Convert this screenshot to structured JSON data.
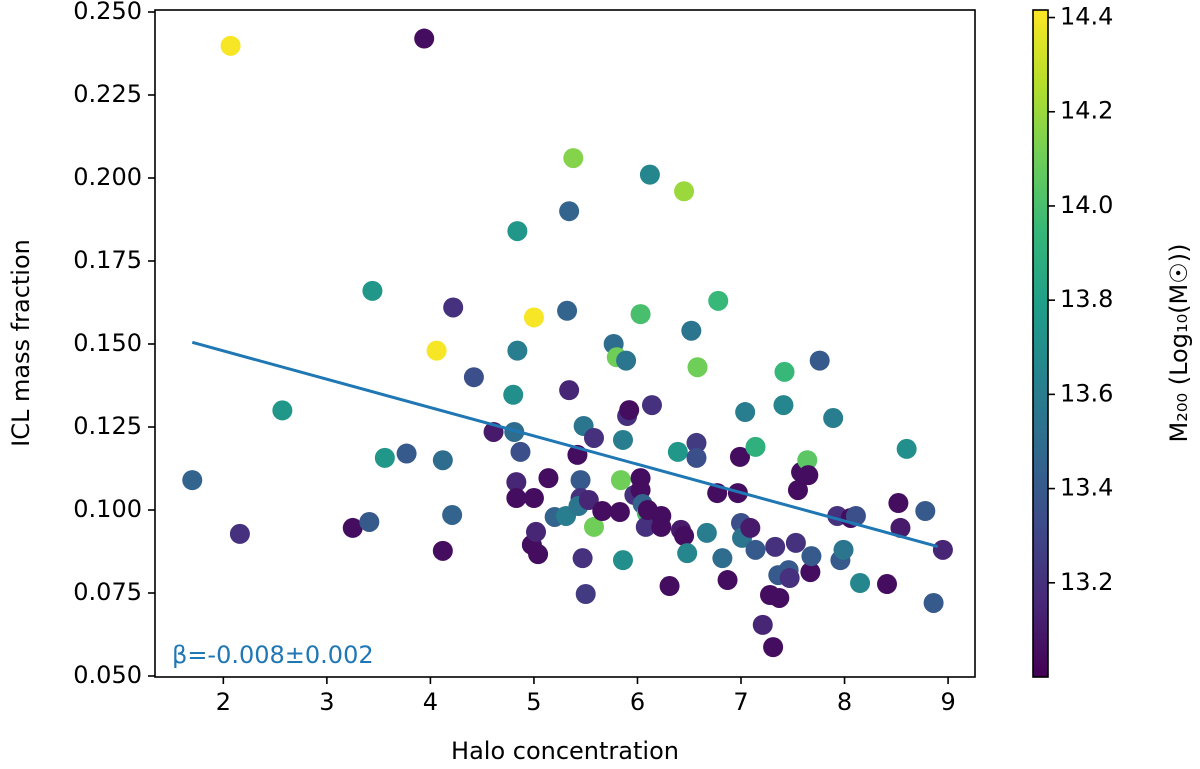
{
  "chart_data": {
    "type": "scatter",
    "xlabel": "Halo concentration",
    "ylabel": "ICL mass fraction",
    "colorbar_label": "M₂₀₀ (Log₁₀(M☉))",
    "annotation": "β=-0.008±0.002",
    "xlim": [
      1.34,
      9.26
    ],
    "ylim": [
      0.0497,
      0.2506
    ],
    "xticks": [
      2,
      3,
      4,
      5,
      6,
      7,
      8,
      9
    ],
    "yticks": [
      {
        "value": 0.05,
        "label": "0.050"
      },
      {
        "value": 0.075,
        "label": "0.075"
      },
      {
        "value": 0.1,
        "label": "0.100"
      },
      {
        "value": 0.125,
        "label": "0.125"
      },
      {
        "value": 0.15,
        "label": "0.150"
      },
      {
        "value": 0.175,
        "label": "0.175"
      },
      {
        "value": 0.2,
        "label": "0.200"
      },
      {
        "value": 0.225,
        "label": "0.225"
      },
      {
        "value": 0.25,
        "label": "0.250"
      }
    ],
    "clim": [
      13.0,
      14.416
    ],
    "cticks": [
      13.2,
      13.4,
      13.6,
      13.8,
      {
        "value": 14.0,
        "label": "14.0"
      },
      14.2,
      14.4
    ],
    "colormap": [
      "#440154",
      "#482878",
      "#3e4989",
      "#31688e",
      "#26828e",
      "#1f9e89",
      "#35b779",
      "#6ece58",
      "#b5de2b",
      "#fde725"
    ],
    "x": [
      2.07,
      3.94,
      5.38,
      6.12,
      6.45,
      5.34,
      4.84,
      3.44,
      4.22,
      5.0,
      5.32,
      6.03,
      6.78,
      4.06,
      4.84,
      5.77,
      5.8,
      5.89,
      6.52,
      6.58,
      7.42,
      7.76,
      4.42,
      2.57,
      1.7,
      2.16,
      3.25,
      3.41,
      3.56,
      3.77,
      4.12,
      4.21,
      4.12,
      4.61,
      4.8,
      4.81,
      4.87,
      4.83,
      4.83,
      5.0,
      4.98,
      5.04,
      5.02,
      5.14,
      5.2,
      5.31,
      5.34,
      5.42,
      5.48,
      5.45,
      5.45,
      5.43,
      5.47,
      5.5,
      5.58,
      5.53,
      5.58,
      5.66,
      5.83,
      5.84,
      5.86,
      5.9,
      5.92,
      5.86,
      5.97,
      6.03,
      6.03,
      6.05,
      6.09,
      6.08,
      6.14,
      6.1,
      6.23,
      6.23,
      6.31,
      6.39,
      6.42,
      6.45,
      6.48,
      6.57,
      6.57,
      6.67,
      6.77,
      6.82,
      6.87,
      6.97,
      6.99,
      7.0,
      7.01,
      7.04,
      7.09,
      7.14,
      7.14,
      7.21,
      7.28,
      7.31,
      7.33,
      7.36,
      7.37,
      7.41,
      7.46,
      7.47,
      7.53,
      7.55,
      7.58,
      7.64,
      7.65,
      7.67,
      7.68,
      7.89,
      7.93,
      7.96,
      7.99,
      8.06,
      8.11,
      8.15,
      8.6,
      8.41,
      8.52,
      8.54,
      8.78,
      8.86,
      8.95
    ],
    "values": [
      0.2398,
      0.242,
      0.206,
      0.201,
      0.196,
      0.19,
      0.184,
      0.166,
      0.161,
      0.158,
      0.16,
      0.159,
      0.163,
      0.148,
      0.148,
      0.15,
      0.146,
      0.145,
      0.154,
      0.143,
      0.1416,
      0.145,
      0.14,
      0.13,
      0.109,
      0.0928,
      0.0946,
      0.0964,
      0.1157,
      0.117,
      0.115,
      0.0985,
      0.0877,
      0.1235,
      0.1347,
      0.1235,
      0.1175,
      0.1084,
      0.1036,
      0.1036,
      0.0895,
      0.0867,
      0.0934,
      0.1096,
      0.0979,
      0.0982,
      0.1361,
      0.1166,
      0.1253,
      0.109,
      0.1036,
      0.1012,
      0.0855,
      0.0747,
      0.1217,
      0.103,
      0.0949,
      0.0997,
      0.0994,
      0.109,
      0.1211,
      0.1283,
      0.1301,
      0.0849,
      0.1045,
      0.1096,
      0.106,
      0.1018,
      0.0991,
      0.0949,
      0.1316,
      0.1,
      0.0982,
      0.0949,
      0.0771,
      0.1175,
      0.094,
      0.0922,
      0.087,
      0.1202,
      0.1157,
      0.0931,
      0.1051,
      0.0855,
      0.0789,
      0.1051,
      0.116,
      0.0961,
      0.0916,
      0.1295,
      0.0946,
      0.119,
      0.088,
      0.0654,
      0.0744,
      0.0587,
      0.0889,
      0.0804,
      0.0735,
      0.1316,
      0.0819,
      0.0795,
      0.0901,
      0.106,
      0.1114,
      0.115,
      0.1105,
      0.0813,
      0.0861,
      0.1277,
      0.0982,
      0.0849,
      0.088,
      0.0976,
      0.0982,
      0.078,
      0.1184,
      0.0777,
      0.1021,
      0.0946,
      0.0997,
      0.072,
      0.088
    ],
    "c": [
      14.4,
      13.05,
      14.15,
      13.65,
      14.2,
      13.45,
      13.75,
      13.75,
      13.2,
      14.4,
      13.45,
      14.0,
      13.95,
      14.4,
      13.6,
      13.5,
      14.1,
      13.55,
      13.55,
      14.1,
      13.95,
      13.4,
      13.35,
      13.75,
      13.45,
      13.2,
      13.05,
      13.4,
      13.75,
      13.4,
      13.5,
      13.45,
      13.05,
      13.1,
      13.7,
      13.5,
      13.35,
      13.15,
      13.05,
      13.05,
      13.05,
      13.05,
      13.15,
      13.05,
      13.45,
      13.6,
      13.15,
      13.05,
      13.55,
      13.4,
      13.2,
      13.55,
      13.2,
      13.25,
      13.2,
      13.15,
      14.1,
      13.05,
      13.05,
      14.1,
      13.6,
      13.2,
      13.05,
      13.7,
      13.2,
      13.05,
      13.05,
      13.45,
      14.0,
      13.2,
      13.2,
      13.05,
      13.05,
      13.05,
      13.05,
      13.75,
      13.1,
      13.05,
      13.65,
      13.25,
      13.35,
      13.6,
      13.05,
      13.5,
      13.05,
      13.05,
      13.05,
      13.35,
      13.55,
      13.6,
      13.1,
      13.9,
      13.4,
      13.15,
      13.05,
      13.05,
      13.2,
      13.4,
      13.05,
      13.65,
      13.4,
      13.2,
      13.2,
      13.05,
      13.05,
      14.05,
      13.05,
      13.05,
      13.4,
      13.6,
      13.2,
      13.4,
      13.55,
      13.05,
      13.35,
      13.65,
      13.7,
      13.05,
      13.05,
      13.1,
      13.4,
      13.4,
      13.15
    ],
    "fit": {
      "x": [
        1.7,
        8.9
      ],
      "y": [
        0.1505,
        0.089
      ],
      "color": "#1f77b4"
    }
  }
}
